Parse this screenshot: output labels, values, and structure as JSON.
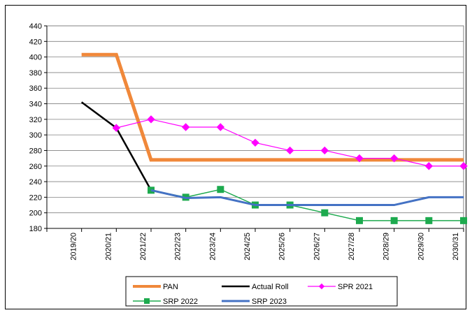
{
  "chart_data": {
    "type": "line",
    "title": "",
    "xlabel": "",
    "ylabel": "",
    "categories": [
      "2019/20",
      "2020/21",
      "2021/22",
      "2022/23",
      "2023/24",
      "2024/25",
      "2025/26",
      "2026/27",
      "2027/28",
      "2028/29",
      "2029/30",
      "2030/31"
    ],
    "ylim": [
      180,
      440
    ],
    "yticks": [
      180,
      200,
      220,
      240,
      260,
      280,
      300,
      320,
      340,
      360,
      380,
      400,
      420,
      440
    ],
    "grid": true,
    "legend_position": "bottom",
    "series": [
      {
        "name": "PAN",
        "color": "#F0883A",
        "marker": "none",
        "values": [
          403,
          403,
          268,
          268,
          268,
          268,
          268,
          268,
          268,
          268,
          268,
          268
        ]
      },
      {
        "name": "Actual Roll",
        "color": "#000000",
        "marker": "none",
        "values": [
          342,
          309,
          229,
          219,
          null,
          null,
          null,
          null,
          null,
          null,
          null,
          null
        ]
      },
      {
        "name": "SPR 2021",
        "color": "#FF00FF",
        "marker": "diamond",
        "values": [
          null,
          309,
          320,
          310,
          310,
          290,
          280,
          280,
          270,
          270,
          260,
          260
        ]
      },
      {
        "name": "SRP 2022",
        "color": "#1DAA4E",
        "marker": "square",
        "values": [
          null,
          null,
          229,
          220,
          230,
          210,
          210,
          200,
          190,
          190,
          190,
          190
        ]
      },
      {
        "name": "SRP 2023",
        "color": "#4472C4",
        "marker": "none",
        "values": [
          null,
          null,
          229,
          219,
          220,
          210,
          210,
          210,
          210,
          210,
          220,
          220
        ]
      }
    ]
  }
}
